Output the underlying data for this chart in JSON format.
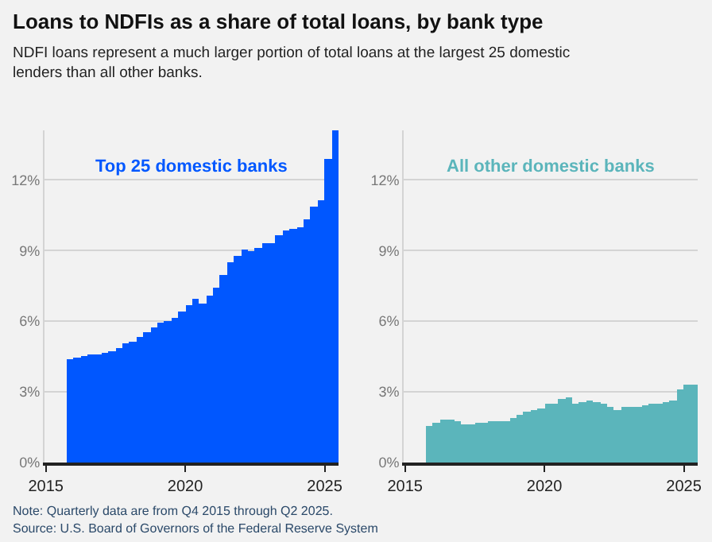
{
  "chart_data": [
    {
      "type": "bar",
      "title": "Loans to NDFIs as a share of total loans, by bank type",
      "subtitle": "NDFI loans represent a much larger portion of total loans at the largest 25 domestic lenders than all other banks.",
      "annotations": [
        "Note: Quarterly data are from Q4 2015 through Q2 2025.",
        "Source: U.S. Board of Governors of the Federal Reserve System"
      ],
      "x": [
        "2015-10",
        "2016-01",
        "2016-04",
        "2016-07",
        "2016-10",
        "2017-01",
        "2017-04",
        "2017-07",
        "2017-10",
        "2018-01",
        "2018-04",
        "2018-07",
        "2018-10",
        "2019-01",
        "2019-04",
        "2019-07",
        "2019-10",
        "2020-01",
        "2020-04",
        "2020-07",
        "2020-10",
        "2021-01",
        "2021-04",
        "2021-07",
        "2021-10",
        "2022-01",
        "2022-04",
        "2022-07",
        "2022-10",
        "2023-01",
        "2023-04",
        "2023-07",
        "2023-10",
        "2024-01",
        "2024-04",
        "2024-07",
        "2024-10",
        "2025-01",
        "2025-04"
      ],
      "series": [
        {
          "name": "Top 25 domestic banks",
          "color": "#0057ff",
          "values": [
            4.41,
            4.45,
            4.53,
            4.6,
            4.62,
            4.64,
            4.74,
            4.88,
            5.06,
            5.12,
            5.3,
            5.55,
            5.75,
            5.97,
            6.0,
            6.17,
            6.44,
            6.68,
            6.96,
            6.72,
            7.1,
            7.45,
            7.96,
            8.52,
            8.8,
            9.03,
            9.0,
            9.13,
            9.33,
            9.33,
            9.64,
            9.82,
            9.94,
            9.96,
            10.34,
            10.85,
            11.15,
            12.87,
            14.09
          ]
        }
      ],
      "xlim": [
        "2014-12-15",
        "2025-07-01"
      ],
      "xticks": [
        {
          "value": "2015-01-01",
          "label": "2015"
        },
        {
          "value": "2020-01-01",
          "label": "2020"
        },
        {
          "value": "2025-01-01",
          "label": "2025"
        }
      ],
      "ylim": [
        0,
        14.1
      ],
      "yticks": [
        {
          "value": 0,
          "label": "0%"
        },
        {
          "value": 3,
          "label": "3%"
        },
        {
          "value": 6,
          "label": "6%"
        },
        {
          "value": 9,
          "label": "9%"
        },
        {
          "value": 12,
          "label": "12%"
        }
      ],
      "grid": "y",
      "legend": false
    },
    {
      "type": "bar",
      "x": [
        "2015-10",
        "2016-01",
        "2016-04",
        "2016-07",
        "2016-10",
        "2017-01",
        "2017-04",
        "2017-07",
        "2017-10",
        "2018-01",
        "2018-04",
        "2018-07",
        "2018-10",
        "2019-01",
        "2019-04",
        "2019-07",
        "2019-10",
        "2020-01",
        "2020-04",
        "2020-07",
        "2020-10",
        "2021-01",
        "2021-04",
        "2021-07",
        "2021-10",
        "2022-01",
        "2022-04",
        "2022-07",
        "2022-10",
        "2023-01",
        "2023-04",
        "2023-07",
        "2023-10",
        "2024-01",
        "2024-04",
        "2024-07",
        "2024-10",
        "2025-01",
        "2025-04"
      ],
      "series": [
        {
          "name": "All other domestic banks",
          "color": "#5bb5bb",
          "values": [
            1.52,
            1.7,
            1.8,
            1.8,
            1.78,
            1.64,
            1.6,
            1.68,
            1.72,
            1.78,
            1.74,
            1.74,
            1.88,
            2.02,
            2.15,
            2.25,
            2.31,
            2.47,
            2.51,
            2.67,
            2.77,
            2.49,
            2.55,
            2.61,
            2.59,
            2.47,
            2.37,
            2.23,
            2.33,
            2.33,
            2.33,
            2.41,
            2.49,
            2.53,
            2.55,
            2.65,
            3.08,
            3.28,
            3.28
          ]
        }
      ],
      "xlim": [
        "2014-12-15",
        "2025-07-01"
      ],
      "xticks": [
        {
          "value": "2015-01-01",
          "label": "2015"
        },
        {
          "value": "2020-01-01",
          "label": "2020"
        },
        {
          "value": "2025-01-01",
          "label": "2025"
        }
      ],
      "ylim": [
        0,
        14.1
      ],
      "yticks": [
        {
          "value": 0,
          "label": "0%"
        },
        {
          "value": 3,
          "label": "3%"
        },
        {
          "value": 6,
          "label": "6%"
        },
        {
          "value": 9,
          "label": "9%"
        },
        {
          "value": 12,
          "label": "12%"
        }
      ],
      "grid": "y",
      "legend": false
    }
  ]
}
